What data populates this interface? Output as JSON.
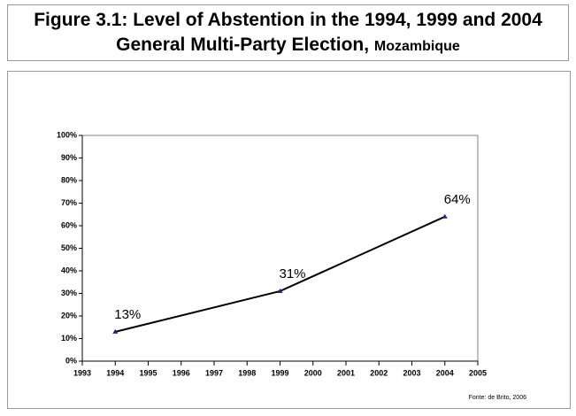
{
  "chart_data": {
    "type": "line",
    "title": "Figure 3.1: Level of Abstention in the 1994, 1999 and 2004 General Multi-Party Election,",
    "title_place": "Mozambique",
    "source": "Fonte: de Brito, 2006",
    "x": [
      1994,
      1999,
      2004
    ],
    "series": [
      {
        "name": "Abstention",
        "color": "#000000",
        "marker_color": "#1f1f8f",
        "values": [
          13,
          31,
          64
        ],
        "value_labels": [
          "13%",
          "31%",
          "64%"
        ]
      }
    ],
    "xlim": [
      1993,
      2005
    ],
    "xticks": [
      1993,
      1994,
      1995,
      1996,
      1997,
      1998,
      1999,
      2000,
      2001,
      2002,
      2003,
      2004,
      2005
    ],
    "ylim": [
      0,
      100
    ],
    "yticks": [
      {
        "value": 0,
        "label": "0%"
      },
      {
        "value": 10,
        "label": "10%"
      },
      {
        "value": 20,
        "label": "20%"
      },
      {
        "value": 30,
        "label": "30%"
      },
      {
        "value": 40,
        "label": "40%"
      },
      {
        "value": 50,
        "label": "50%"
      },
      {
        "value": 60,
        "label": "60%"
      },
      {
        "value": 70,
        "label": "70%"
      },
      {
        "value": 80,
        "label": "80%"
      },
      {
        "value": 90,
        "label": "90%"
      },
      {
        "value": 100,
        "label": "100%"
      }
    ],
    "grid": false
  }
}
